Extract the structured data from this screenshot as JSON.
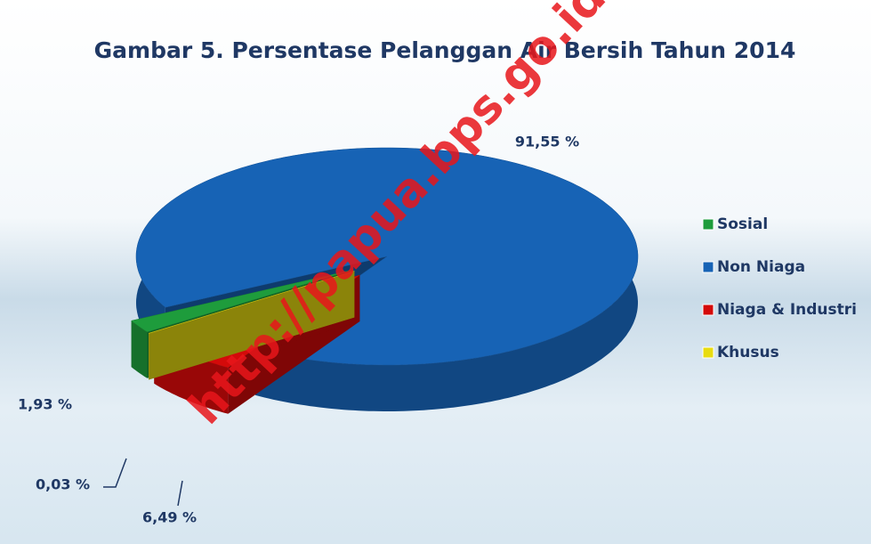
{
  "chart_data": {
    "type": "pie3d",
    "title": "Gambar 5. Persentase Pelanggan Air Bersih Tahun 2014",
    "watermark": "http://papua.bps.go.id",
    "categories": [
      "Sosial",
      "Non Niaga",
      "Niaga & Industri",
      "Khusus"
    ],
    "values": [
      1.93,
      91.55,
      6.49,
      0.03
    ],
    "value_labels": [
      "1,93 %",
      "91,55 %",
      "6,49 %",
      "0,03 %"
    ],
    "colors": [
      "#1e9c3c",
      "#1763b5",
      "#d40a0a",
      "#e8dc10"
    ],
    "legend": "right"
  }
}
